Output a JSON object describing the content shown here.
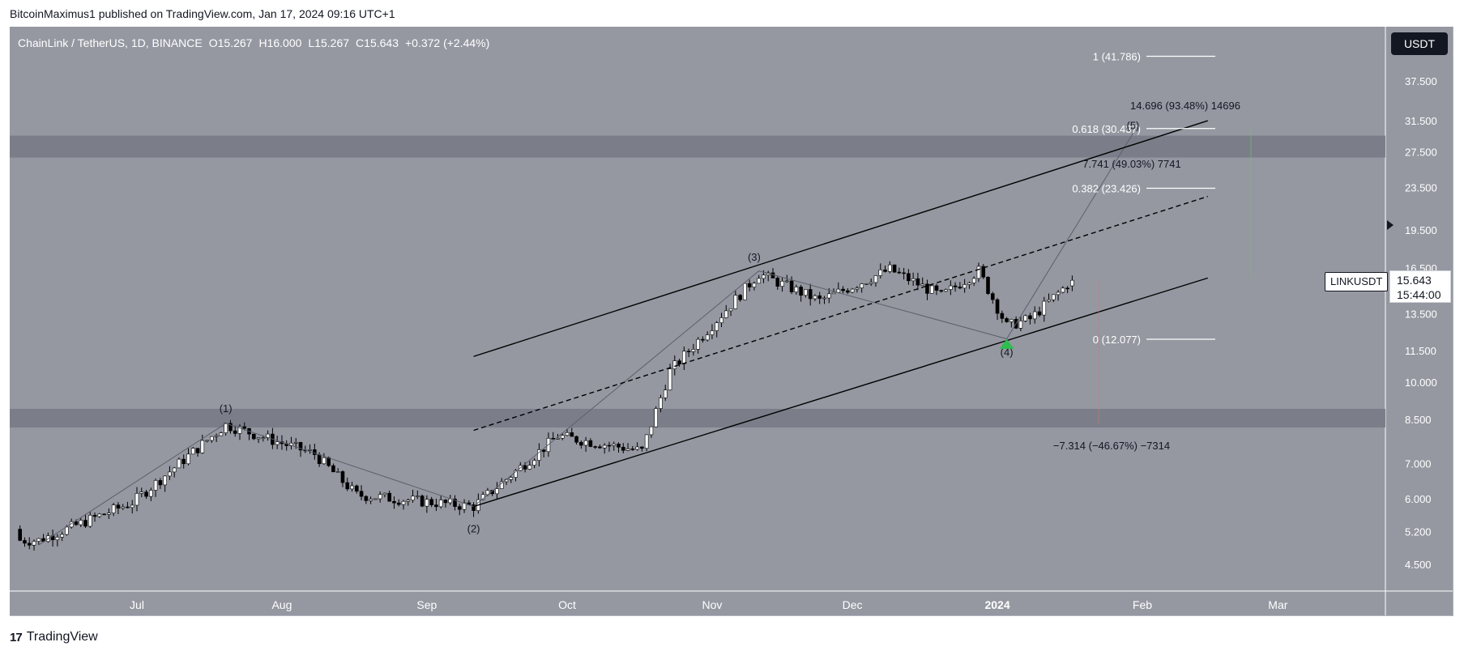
{
  "header": {
    "caption": "BitcoinMaximus1 published on TradingView.com, Jan 17, 2024 09:16 UTC+1"
  },
  "legend": {
    "pair": "ChainLink / TetherUS, 1D, BINANCE",
    "o_label": "O",
    "o": "15.267",
    "h_label": "H",
    "h": "16.000",
    "l_label": "L",
    "l": "15.267",
    "c_label": "C",
    "c": "15.643",
    "change": "+0.372 (+2.44%)"
  },
  "price_axis": {
    "currency": "USDT",
    "symbol_label": "LINKUSDT",
    "last_price": "15.643",
    "countdown": "15:44:00"
  },
  "footer": {
    "brand": "TradingView"
  },
  "colors": {
    "chart_bg": "#9598a1",
    "zone": "#787b86",
    "up_candle": "#ffffff",
    "down_candle": "#000000",
    "channel_line": "#000000",
    "arrow_green": "#2ebd4f",
    "fib_line": "#ffffff"
  },
  "chart_data": {
    "type": "candlestick",
    "scale": "log",
    "ylim": [
      4.0,
      44.0
    ],
    "x_ticks": [
      {
        "label": "Jul",
        "date": "2023-07-01"
      },
      {
        "label": "Aug",
        "date": "2023-08-01"
      },
      {
        "label": "Sep",
        "date": "2023-09-01"
      },
      {
        "label": "Oct",
        "date": "2023-10-01"
      },
      {
        "label": "Nov",
        "date": "2023-11-01"
      },
      {
        "label": "Dec",
        "date": "2023-12-01"
      },
      {
        "label": "2024",
        "date": "2024-01-01"
      },
      {
        "label": "Feb",
        "date": "2024-02-01"
      },
      {
        "label": "Mar",
        "date": "2024-03-01"
      }
    ],
    "y_ticks": [
      "4.500",
      "5.200",
      "6.000",
      "7.000",
      "8.500",
      "10.000",
      "11.500",
      "13.500",
      "16.500",
      "19.500",
      "23.500",
      "27.500",
      "31.500",
      "37.500"
    ],
    "candles_anchor_start": "2023-06-06",
    "key_closes": [
      {
        "date": "2023-06-10",
        "close": 5.0
      },
      {
        "date": "2023-06-30",
        "close": 5.9
      },
      {
        "date": "2023-07-20",
        "close": 8.3
      },
      {
        "date": "2023-08-08",
        "close": 7.3
      },
      {
        "date": "2023-08-17",
        "close": 6.1
      },
      {
        "date": "2023-09-11",
        "close": 5.8
      },
      {
        "date": "2023-09-29",
        "close": 7.9
      },
      {
        "date": "2023-10-17",
        "close": 7.4
      },
      {
        "date": "2023-10-23",
        "close": 10.5
      },
      {
        "date": "2023-11-11",
        "close": 16.1
      },
      {
        "date": "2023-11-24",
        "close": 14.3
      },
      {
        "date": "2023-12-09",
        "close": 16.4
      },
      {
        "date": "2023-12-20",
        "close": 14.6
      },
      {
        "date": "2023-12-28",
        "close": 16.3
      },
      {
        "date": "2024-01-03",
        "close": 12.8
      },
      {
        "date": "2024-01-08",
        "close": 13.2
      },
      {
        "date": "2024-01-17",
        "close": 15.643
      }
    ],
    "wave_labels": [
      {
        "label": "(1)",
        "date": "2023-07-20",
        "price": 8.9
      },
      {
        "label": "(2)",
        "date": "2023-09-11",
        "price": 5.25
      },
      {
        "label": "(3)",
        "date": "2023-11-10",
        "price": 17.3
      },
      {
        "label": "(4)",
        "date": "2024-01-03",
        "price": 11.4
      },
      {
        "label": "(5)",
        "date": "2024-01-30",
        "price": 30.8
      }
    ],
    "fib_levels": [
      {
        "label": "1 (41.786)",
        "price": 41.786
      },
      {
        "label": "0.618 (30.437)",
        "price": 30.437
      },
      {
        "label": "0.382 (23.426)",
        "price": 23.426
      },
      {
        "label": "0 (12.077)",
        "price": 12.077
      }
    ],
    "measurements": [
      {
        "text": "14.696 (93.48%) 14696"
      },
      {
        "text": "7.741 (49.03%) 7741"
      },
      {
        "text": "−7.314 (−46.67%) −7314"
      }
    ],
    "horizontal_zones": [
      {
        "low": 26.8,
        "high": 29.5
      },
      {
        "low": 8.2,
        "high": 8.9
      }
    ]
  }
}
